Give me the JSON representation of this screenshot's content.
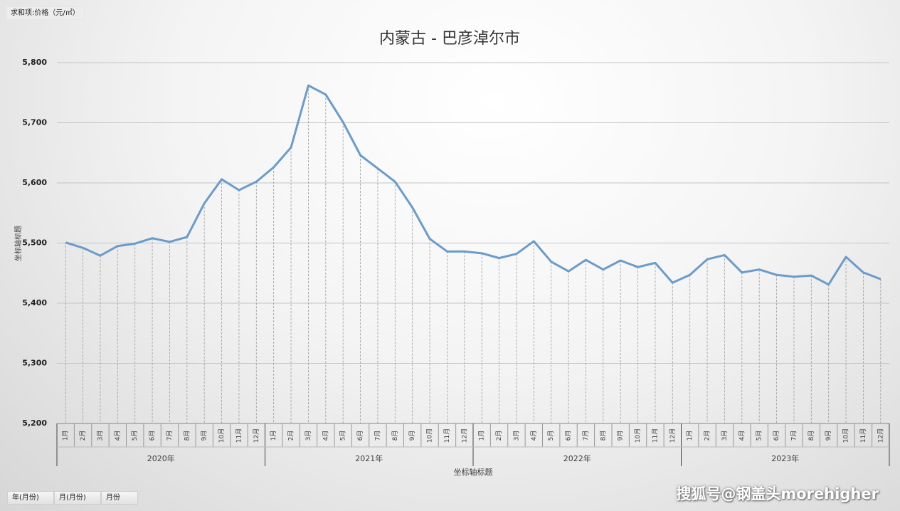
{
  "field_buttons": {
    "value_field": "求和项:价格（元/㎡）",
    "row_fields": [
      "年(月份)",
      "月(月份)",
      "月份"
    ]
  },
  "watermark": "搜狐号@钢盖头morehigher",
  "chart_data": {
    "type": "line",
    "title": "内蒙古 - 巴彦淖尔市",
    "y_axis_title": "坐标轴标题",
    "x_axis_title": "坐标轴标题",
    "categories": [
      "1月",
      "2月",
      "3月",
      "4月",
      "5月",
      "6月",
      "7月",
      "8月",
      "9月",
      "10月",
      "11月",
      "12月",
      "1月",
      "2月",
      "3月",
      "4月",
      "5月",
      "6月",
      "7月",
      "8月",
      "9月",
      "10月",
      "11月",
      "12月",
      "1月",
      "2月",
      "3月",
      "4月",
      "5月",
      "6月",
      "7月",
      "8月",
      "9月",
      "10月",
      "11月",
      "12月",
      "1月",
      "2月",
      "3月",
      "4月",
      "5月",
      "6月",
      "7月",
      "8月",
      "9月",
      "10月",
      "11月",
      "12月"
    ],
    "category_groups": [
      "2020年",
      "2021年",
      "2022年",
      "2023年"
    ],
    "values": [
      5501,
      5492,
      5479,
      5495,
      5499,
      5508,
      5502,
      5510,
      5566,
      5606,
      5588,
      5602,
      5626,
      5659,
      5762,
      5747,
      5701,
      5646,
      5624,
      5602,
      5559,
      5507,
      5486,
      5486,
      5483,
      5475,
      5482,
      5503,
      5469,
      5453,
      5472,
      5456,
      5471,
      5460,
      5467,
      5434,
      5447,
      5473,
      5480,
      5451,
      5456,
      5447,
      5444,
      5446,
      5431,
      5477,
      5451,
      5440
    ],
    "color": "#6a9ccb",
    "ylim": [
      5200,
      5800
    ],
    "yticks": [
      {
        "value": 5200,
        "label": "5,200"
      },
      {
        "value": 5300,
        "label": "5,300"
      },
      {
        "value": 5400,
        "label": "5,400"
      },
      {
        "value": 5500,
        "label": "5,500"
      },
      {
        "value": 5600,
        "label": "5,600"
      },
      {
        "value": 5700,
        "label": "5,700"
      },
      {
        "value": 5800,
        "label": "5,800"
      }
    ],
    "grid": true,
    "drop_lines": true
  }
}
